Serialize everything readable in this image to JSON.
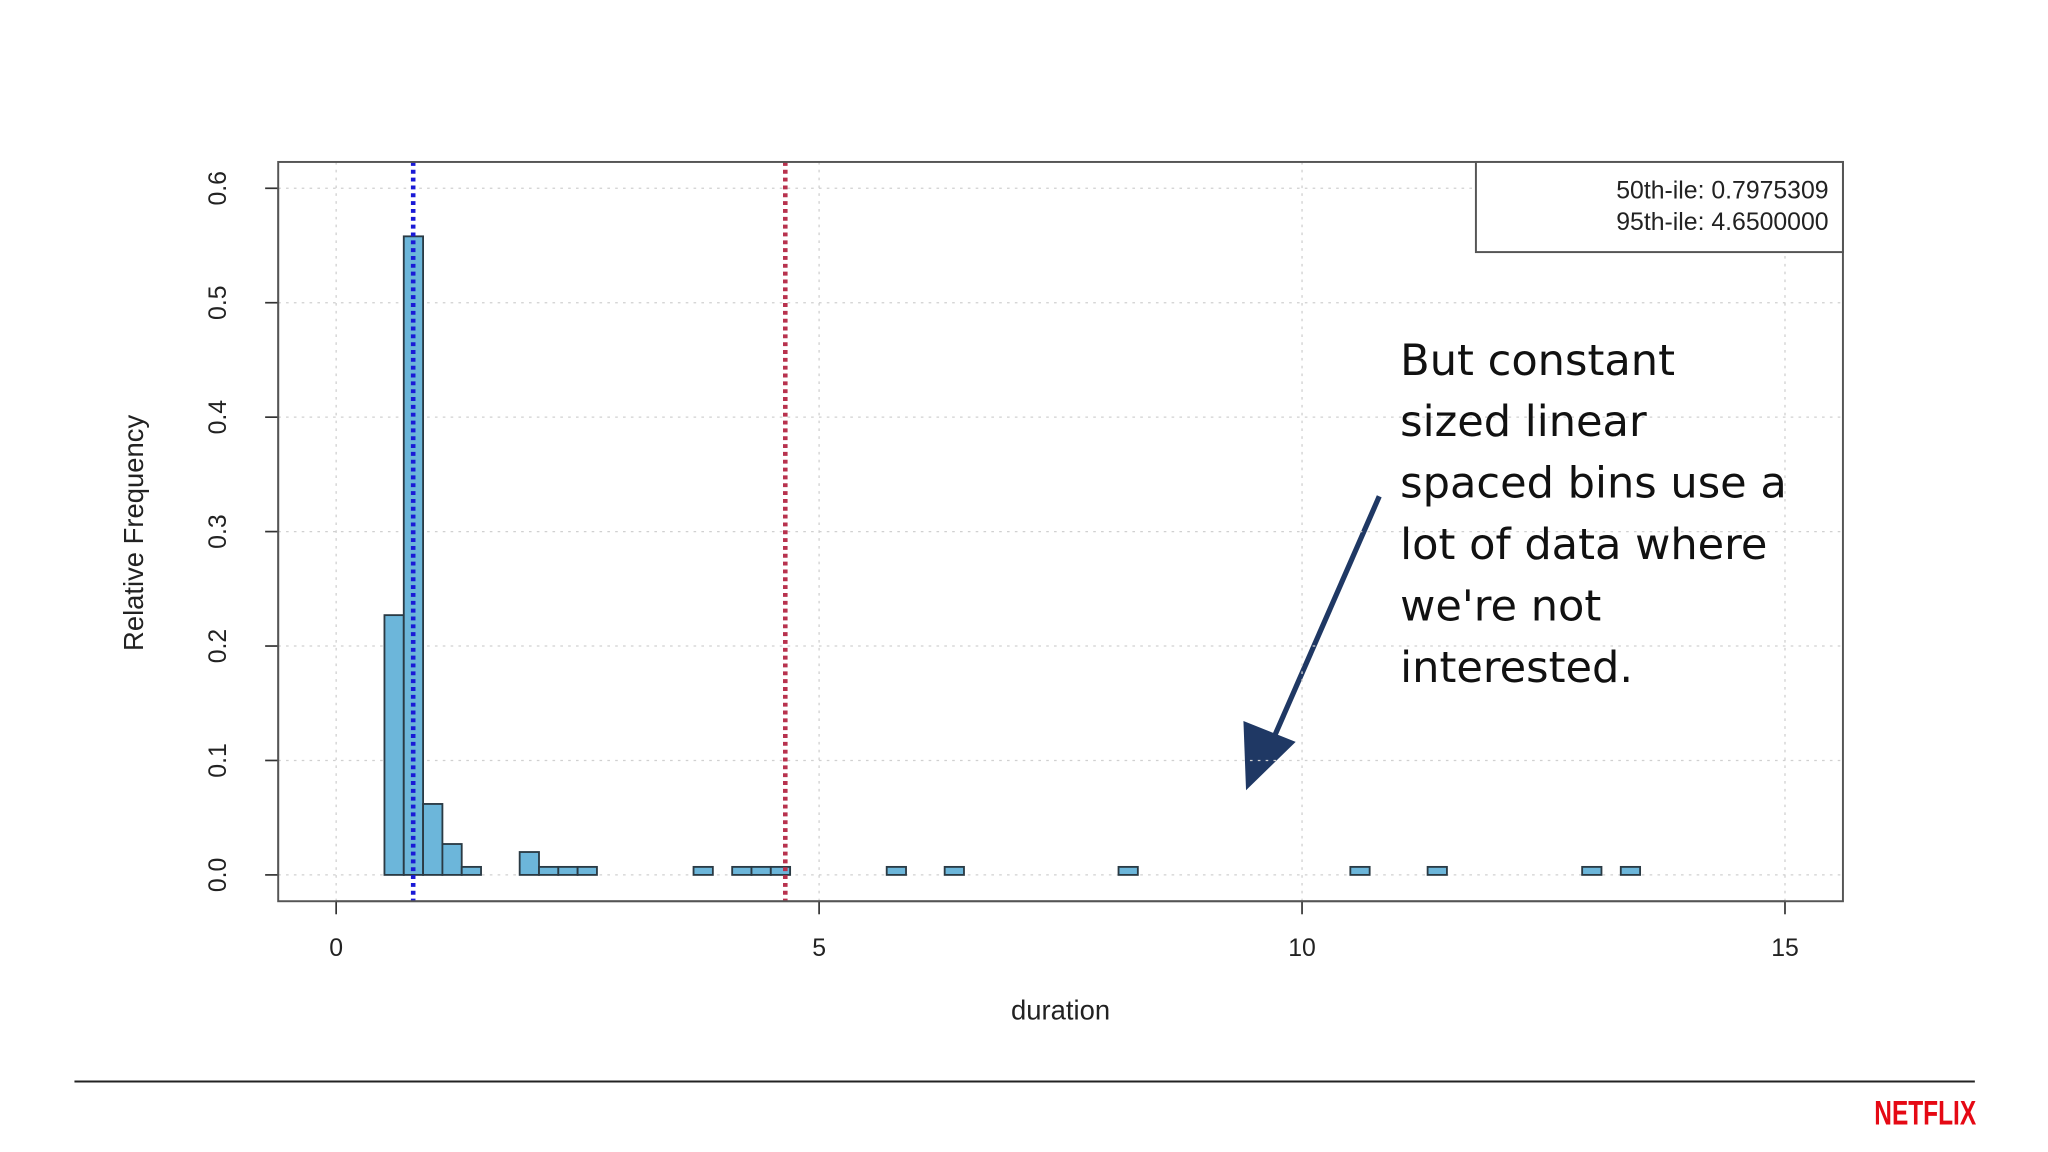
{
  "chart_data": {
    "type": "histogram",
    "bins": [
      0.5,
      0.7,
      0.9,
      1.1,
      1.3,
      1.5,
      1.7,
      1.9,
      2.1,
      2.3,
      2.5,
      2.7,
      2.9,
      3.1,
      3.3,
      3.5,
      3.7,
      3.9,
      4.1,
      4.3,
      4.5,
      4.7,
      4.9,
      5.1,
      5.3,
      5.5,
      5.7,
      5.9,
      6.1,
      6.3,
      6.5,
      6.7,
      6.9,
      7.1,
      7.3,
      7.5,
      7.7,
      7.9,
      8.1,
      8.3,
      8.5,
      8.7,
      8.9,
      9.1,
      9.3,
      9.5,
      9.7,
      9.9,
      10.1,
      10.3,
      10.5,
      10.7,
      10.9,
      11.1,
      11.3,
      11.5,
      11.7,
      11.9,
      12.1,
      12.3,
      12.5,
      12.7,
      12.9,
      13.1,
      13.3,
      13.5
    ],
    "values": [
      0.227,
      0.558,
      0.062,
      0.027,
      0.007,
      0,
      0,
      0.02,
      0.007,
      0.007,
      0.007,
      0,
      0,
      0,
      0,
      0,
      0.007,
      0,
      0.007,
      0.007,
      0.007,
      0,
      0,
      0,
      0,
      0,
      0.007,
      0,
      0,
      0.007,
      0,
      0,
      0,
      0,
      0,
      0,
      0,
      0,
      0.007,
      0,
      0,
      0,
      0,
      0,
      0,
      0,
      0,
      0,
      0,
      0,
      0.007,
      0,
      0,
      0,
      0.007,
      0,
      0,
      0,
      0,
      0,
      0,
      0,
      0.007,
      0,
      0.007
    ],
    "color": "#6cb6da",
    "xlabel": "duration",
    "ylabel": "Relative Frequency",
    "xlim": [
      -0.6,
      15.6
    ],
    "ylim": [
      -0.023,
      0.623
    ],
    "xticks": [
      0,
      5,
      10,
      15
    ],
    "yticks": [
      {
        "value": 0,
        "label": "0.0"
      },
      0.1,
      0.2,
      0.3,
      0.4,
      0.5,
      0.6
    ],
    "grid": true,
    "legend": "top-right",
    "vlines": [
      {
        "value": 0.7975309,
        "label": "50th-ile: 0.7975309",
        "color": "#1a1ad6"
      },
      {
        "value": 4.65,
        "label": "95th-ile: 4.6500000",
        "color": "#b8324e"
      }
    ]
  },
  "annotation": {
    "lines": [
      "But constant",
      "sized linear",
      "spaced bins use a",
      "lot of data where",
      "we're not",
      "interested."
    ]
  },
  "brand": "NETFLIX"
}
